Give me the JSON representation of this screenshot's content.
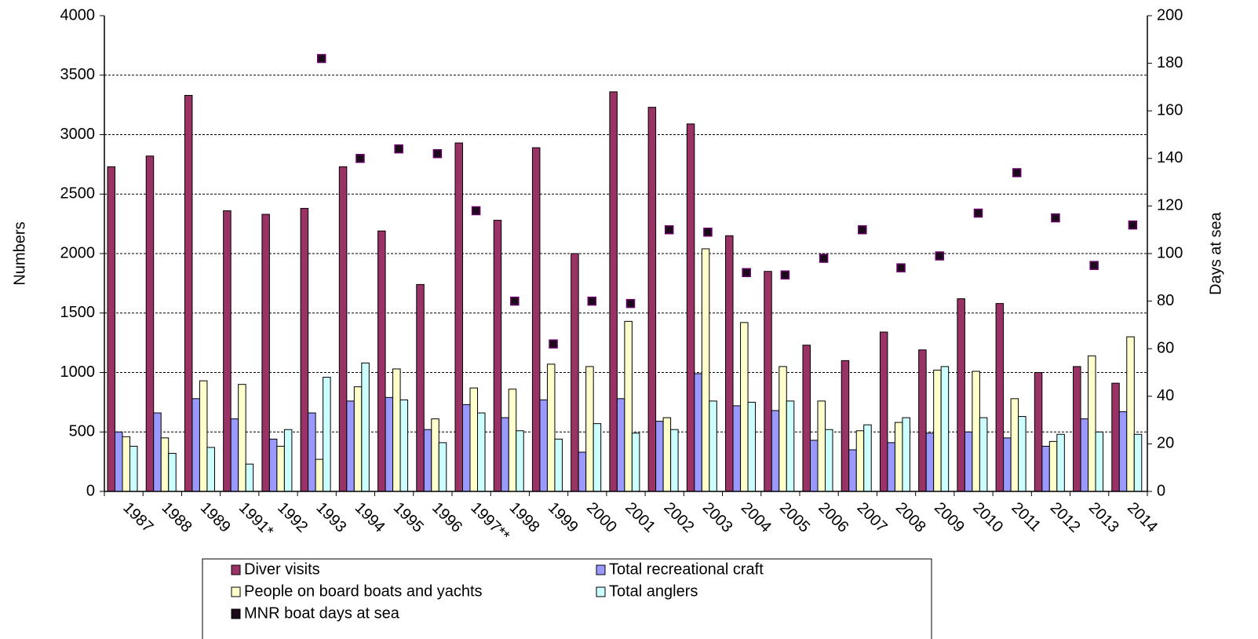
{
  "chart_data": {
    "type": "bar",
    "y_label": "Numbers",
    "y2_label": "Days at sea",
    "categories": [
      "1987",
      "1988",
      "1989",
      "1991*",
      "1992",
      "1993",
      "1994",
      "1995",
      "1996",
      "1997**",
      "1998",
      "1999",
      "2000",
      "2001",
      "2002",
      "2003",
      "2004",
      "2005",
      "2006",
      "2007",
      "2008",
      "2009",
      "2010",
      "2011",
      "2012",
      "2013",
      "2014"
    ],
    "series": [
      {
        "name": "Diver visits",
        "color": "#993366",
        "values": [
          2730,
          2820,
          3330,
          2360,
          2330,
          2380,
          2730,
          2190,
          1740,
          2930,
          2280,
          2890,
          2000,
          3360,
          3230,
          3090,
          2150,
          1850,
          1230,
          1100,
          1340,
          1190,
          1620,
          1580,
          1000,
          1050,
          910
        ]
      },
      {
        "name": "Total recreational craft",
        "color": "#9999ff",
        "values": [
          500,
          660,
          780,
          610,
          440,
          660,
          760,
          790,
          520,
          730,
          620,
          770,
          330,
          780,
          590,
          990,
          720,
          680,
          430,
          350,
          410,
          490,
          500,
          450,
          380,
          610,
          670
        ]
      },
      {
        "name": "People on board boats and yachts",
        "color": "#ffffcc",
        "values": [
          460,
          450,
          930,
          900,
          380,
          270,
          880,
          1030,
          610,
          870,
          860,
          1070,
          1050,
          1430,
          620,
          2040,
          1420,
          1050,
          760,
          510,
          580,
          1020,
          1010,
          780,
          420,
          1140,
          1300
        ]
      },
      {
        "name": "Total anglers",
        "color": "#ccffff",
        "values": [
          380,
          320,
          370,
          230,
          520,
          960,
          1080,
          770,
          410,
          660,
          510,
          440,
          570,
          490,
          520,
          760,
          750,
          760,
          520,
          560,
          620,
          1050,
          620,
          630,
          480,
          500,
          480
        ]
      },
      {
        "name": "MNR boat days at sea",
        "color": "#1a0a1a",
        "type": "scatter",
        "axis": "y2",
        "values": [
          null,
          null,
          null,
          null,
          null,
          182,
          140,
          144,
          142,
          118,
          80,
          62,
          80,
          79,
          110,
          109,
          92,
          91,
          98,
          110,
          94,
          99,
          117,
          134,
          115,
          95,
          112
        ]
      }
    ],
    "ylim": [
      0,
      4000
    ],
    "yticks": [
      0,
      500,
      1000,
      1500,
      2000,
      2500,
      3000,
      3500,
      4000
    ],
    "y2lim": [
      0,
      200
    ],
    "y2ticks": [
      0,
      20,
      40,
      60,
      80,
      100,
      120,
      140,
      160,
      180,
      200
    ],
    "grid": true
  }
}
